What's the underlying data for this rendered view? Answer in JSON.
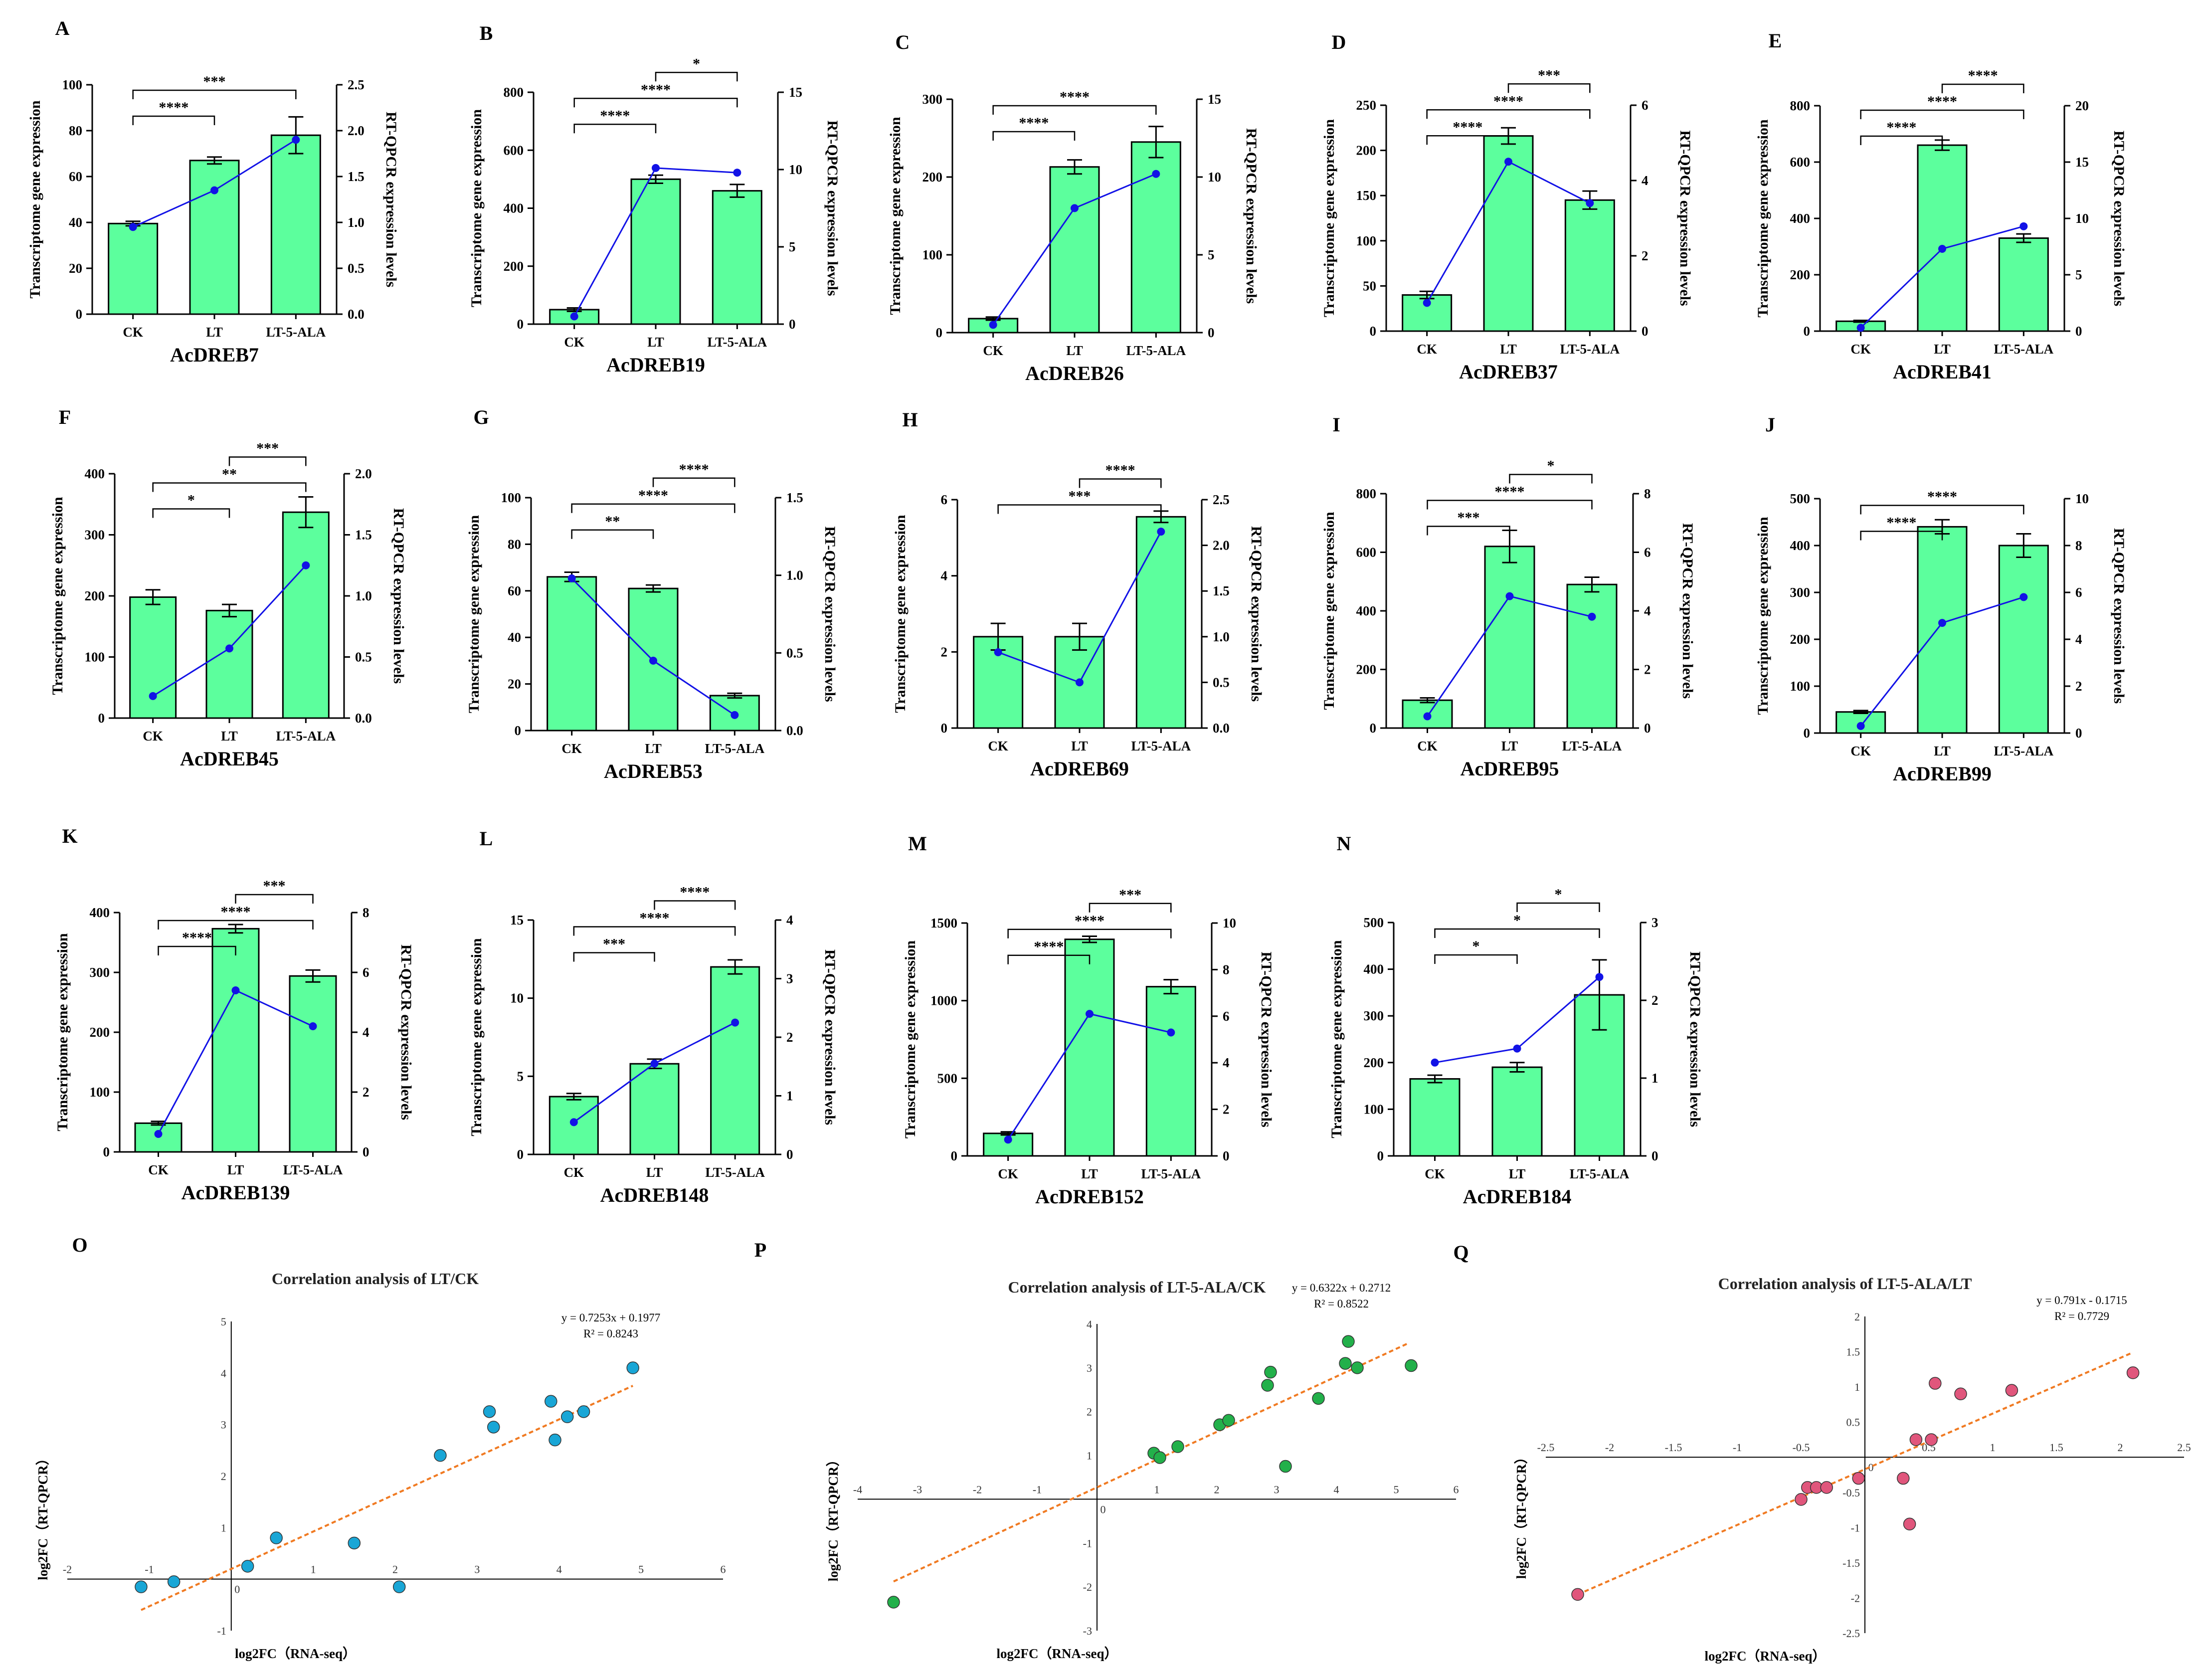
{
  "colors": {
    "bar": "#5cff9d",
    "line": "#1212e6",
    "fit": "#f07a22"
  },
  "chart_data": [
    {
      "type": "bar",
      "panel": "A",
      "gene": "AcDREB7",
      "categories": [
        "CK",
        "LT",
        "LT-5-ALA"
      ],
      "ylabel_left": "Transcriptome gene expression",
      "ylabel_right": "RT-QPCR expression levels",
      "left_ticks": [
        "0",
        "20",
        "40",
        "60",
        "80",
        "100"
      ],
      "left_max": 100,
      "right_ticks": [
        "0.0",
        "0.5",
        "1.0",
        "1.5",
        "2.0",
        "2.5"
      ],
      "right_max": 2.5,
      "values": [
        39.5,
        67,
        78
      ],
      "errors": [
        1,
        1.5,
        8
      ],
      "qpcr": [
        0.95,
        1.35,
        1.9
      ],
      "brackets": [
        {
          "from": 0,
          "to": 1,
          "label": "****"
        },
        {
          "from": 0,
          "to": 2,
          "label": "***"
        }
      ]
    },
    {
      "type": "bar",
      "panel": "B",
      "gene": "AcDREB19",
      "categories": [
        "CK",
        "LT",
        "LT-5-ALA"
      ],
      "ylabel_left": "Transcriptome gene expression",
      "ylabel_right": "RT-QPCR expression levels",
      "left_ticks": [
        "0",
        "200",
        "400",
        "600",
        "800"
      ],
      "left_max": 800,
      "right_ticks": [
        "0",
        "5",
        "10",
        "15"
      ],
      "right_max": 15,
      "values": [
        50,
        500,
        460
      ],
      "errors": [
        6,
        14,
        22
      ],
      "qpcr": [
        0.5,
        10.1,
        9.8
      ],
      "brackets": [
        {
          "from": 0,
          "to": 1,
          "label": "****"
        },
        {
          "from": 0,
          "to": 2,
          "label": "****"
        },
        {
          "from": 1,
          "to": 2,
          "label": "*"
        }
      ]
    },
    {
      "type": "bar",
      "panel": "C",
      "gene": "AcDREB26",
      "categories": [
        "CK",
        "LT",
        "LT-5-ALA"
      ],
      "ylabel_left": "Transcriptome gene expression",
      "ylabel_right": "RT-QPCR expression levels",
      "left_ticks": [
        "0",
        "100",
        "200",
        "300"
      ],
      "left_max": 300,
      "right_ticks": [
        "0",
        "5",
        "10",
        "15"
      ],
      "right_max": 15,
      "values": [
        18,
        213,
        245
      ],
      "errors": [
        2,
        9,
        20
      ],
      "qpcr": [
        0.5,
        8,
        10.2
      ],
      "brackets": [
        {
          "from": 0,
          "to": 1,
          "label": "****"
        },
        {
          "from": 0,
          "to": 2,
          "label": "****"
        }
      ]
    },
    {
      "type": "bar",
      "panel": "D",
      "gene": "AcDREB37",
      "categories": [
        "CK",
        "LT",
        "LT-5-ALA"
      ],
      "ylabel_left": "Transcriptome gene expression",
      "ylabel_right": "RT-QPCR expression levels",
      "left_ticks": [
        "0",
        "50",
        "100",
        "150",
        "200",
        "250"
      ],
      "left_max": 250,
      "right_ticks": [
        "0",
        "2",
        "4",
        "6"
      ],
      "right_max": 6,
      "values": [
        40,
        216,
        145
      ],
      "errors": [
        4,
        9,
        10
      ],
      "qpcr": [
        0.75,
        4.5,
        3.4
      ],
      "brackets": [
        {
          "from": 0,
          "to": 1,
          "label": "****"
        },
        {
          "from": 0,
          "to": 2,
          "label": "****"
        },
        {
          "from": 1,
          "to": 2,
          "label": "***"
        }
      ]
    },
    {
      "type": "bar",
      "panel": "E",
      "gene": "AcDREB41",
      "categories": [
        "CK",
        "LT",
        "LT-5-ALA"
      ],
      "ylabel_left": "Transcriptome gene expression",
      "ylabel_right": "RT-QPCR expression levels",
      "left_ticks": [
        "0",
        "200",
        "400",
        "600",
        "800"
      ],
      "left_max": 800,
      "right_ticks": [
        "0",
        "5",
        "10",
        "15",
        "20"
      ],
      "right_max": 20,
      "values": [
        35,
        660,
        330
      ],
      "errors": [
        3,
        18,
        15
      ],
      "qpcr": [
        0.3,
        7.3,
        9.3
      ],
      "brackets": [
        {
          "from": 0,
          "to": 1,
          "label": "****"
        },
        {
          "from": 0,
          "to": 2,
          "label": "****"
        },
        {
          "from": 1,
          "to": 2,
          "label": "****"
        }
      ]
    },
    {
      "type": "bar",
      "panel": "F",
      "gene": "AcDREB45",
      "categories": [
        "CK",
        "LT",
        "LT-5-ALA"
      ],
      "ylabel_left": "Transcriptome gene expression",
      "ylabel_right": "RT-QPCR expression levels",
      "left_ticks": [
        "0",
        "100",
        "200",
        "300",
        "400"
      ],
      "left_max": 400,
      "right_ticks": [
        "0.0",
        "0.5",
        "1.0",
        "1.5",
        "2.0"
      ],
      "right_max": 2,
      "values": [
        198,
        176,
        337
      ],
      "errors": [
        12,
        10,
        25
      ],
      "qpcr": [
        0.18,
        0.57,
        1.25
      ],
      "brackets": [
        {
          "from": 0,
          "to": 1,
          "label": "*"
        },
        {
          "from": 0,
          "to": 2,
          "label": "**"
        },
        {
          "from": 1,
          "to": 2,
          "label": "***"
        }
      ]
    },
    {
      "type": "bar",
      "panel": "G",
      "gene": "AcDREB53",
      "categories": [
        "CK",
        "LT",
        "LT-5-ALA"
      ],
      "ylabel_left": "Transcriptome gene expression",
      "ylabel_right": "RT-QPCR expression levels",
      "left_ticks": [
        "0",
        "20",
        "40",
        "60",
        "80",
        "100"
      ],
      "left_max": 100,
      "right_ticks": [
        "0.0",
        "0.5",
        "1.0",
        "1.5"
      ],
      "right_max": 1.5,
      "values": [
        66,
        61,
        15
      ],
      "errors": [
        2,
        1.5,
        1
      ],
      "qpcr": [
        0.98,
        0.45,
        0.1
      ],
      "brackets": [
        {
          "from": 0,
          "to": 1,
          "label": "**"
        },
        {
          "from": 0,
          "to": 2,
          "label": "****"
        },
        {
          "from": 1,
          "to": 2,
          "label": "****"
        }
      ]
    },
    {
      "type": "bar",
      "panel": "H",
      "gene": "AcDREB69",
      "categories": [
        "CK",
        "LT",
        "LT-5-ALA"
      ],
      "ylabel_left": "Transcriptome gene expression",
      "ylabel_right": "RT-QPCR expression levels",
      "left_ticks": [
        "0",
        "2",
        "4",
        "6"
      ],
      "left_max": 6,
      "right_ticks": [
        "0.0",
        "0.5",
        "1.0",
        "1.5",
        "2.0",
        "2.5"
      ],
      "right_max": 2.5,
      "values": [
        2.4,
        2.4,
        5.55
      ],
      "errors": [
        0.35,
        0.35,
        0.15
      ],
      "qpcr": [
        0.83,
        0.5,
        2.15
      ],
      "brackets": [
        {
          "from": 0,
          "to": 2,
          "label": "***"
        },
        {
          "from": 1,
          "to": 2,
          "label": "****"
        }
      ]
    },
    {
      "type": "bar",
      "panel": "I",
      "gene": "AcDREB95",
      "categories": [
        "CK",
        "LT",
        "LT-5-ALA"
      ],
      "ylabel_left": "Transcriptome gene expression",
      "ylabel_right": "RT-QPCR expression levels",
      "left_ticks": [
        "0",
        "200",
        "400",
        "600",
        "800"
      ],
      "left_max": 800,
      "right_ticks": [
        "0",
        "2",
        "4",
        "6",
        "8"
      ],
      "right_max": 8,
      "values": [
        95,
        620,
        490
      ],
      "errors": [
        8,
        55,
        25
      ],
      "qpcr": [
        0.4,
        4.5,
        3.8
      ],
      "brackets": [
        {
          "from": 0,
          "to": 1,
          "label": "***"
        },
        {
          "from": 0,
          "to": 2,
          "label": "****"
        },
        {
          "from": 1,
          "to": 2,
          "label": "*"
        }
      ]
    },
    {
      "type": "bar",
      "panel": "J",
      "gene": "AcDREB99",
      "categories": [
        "CK",
        "LT",
        "LT-5-ALA"
      ],
      "ylabel_left": "Transcriptome gene expression",
      "ylabel_right": "RT-QPCR expression levels",
      "left_ticks": [
        "0",
        "100",
        "200",
        "300",
        "400",
        "500"
      ],
      "left_max": 500,
      "right_ticks": [
        "0",
        "2",
        "4",
        "6",
        "8",
        "10"
      ],
      "right_max": 10,
      "values": [
        45,
        440,
        400
      ],
      "errors": [
        3,
        15,
        25
      ],
      "qpcr": [
        0.3,
        4.7,
        5.8
      ],
      "brackets": [
        {
          "from": 0,
          "to": 1,
          "label": "****"
        },
        {
          "from": 0,
          "to": 2,
          "label": "****"
        }
      ]
    },
    {
      "type": "bar",
      "panel": "K",
      "gene": "AcDREB139",
      "categories": [
        "CK",
        "LT",
        "LT-5-ALA"
      ],
      "ylabel_left": "Transcriptome gene expression",
      "ylabel_right": "RT-QPCR expression levels",
      "left_ticks": [
        "0",
        "100",
        "200",
        "300",
        "400"
      ],
      "left_max": 400,
      "right_ticks": [
        "0",
        "2",
        "4",
        "6",
        "8"
      ],
      "right_max": 8,
      "values": [
        48,
        373,
        294
      ],
      "errors": [
        3,
        7,
        10
      ],
      "qpcr": [
        0.6,
        5.4,
        4.2
      ],
      "brackets": [
        {
          "from": 0,
          "to": 1,
          "label": "****"
        },
        {
          "from": 0,
          "to": 2,
          "label": "****"
        },
        {
          "from": 1,
          "to": 2,
          "label": "***"
        }
      ]
    },
    {
      "type": "bar",
      "panel": "L",
      "gene": "AcDREB148",
      "categories": [
        "CK",
        "LT",
        "LT-5-ALA"
      ],
      "ylabel_left": "Transcriptome gene expression",
      "ylabel_right": "RT-QPCR expression levels",
      "left_ticks": [
        "0",
        "5",
        "10",
        "15"
      ],
      "left_max": 15,
      "right_ticks": [
        "0",
        "1",
        "2",
        "3",
        "4"
      ],
      "right_max": 4,
      "values": [
        3.7,
        5.8,
        12
      ],
      "errors": [
        0.2,
        0.3,
        0.45
      ],
      "qpcr": [
        0.55,
        1.55,
        2.25
      ],
      "brackets": [
        {
          "from": 0,
          "to": 1,
          "label": "***"
        },
        {
          "from": 0,
          "to": 2,
          "label": "****"
        },
        {
          "from": 1,
          "to": 2,
          "label": "****"
        }
      ]
    },
    {
      "type": "bar",
      "panel": "M",
      "gene": "AcDREB152",
      "categories": [
        "CK",
        "LT",
        "LT-5-ALA"
      ],
      "ylabel_left": "Transcriptome gene expression",
      "ylabel_right": "RT-QPCR expression levels",
      "left_ticks": [
        "0",
        "500",
        "1000",
        "1500"
      ],
      "left_max": 1500,
      "right_ticks": [
        "0",
        "2",
        "4",
        "6",
        "8",
        "10"
      ],
      "right_max": 10,
      "values": [
        145,
        1395,
        1090
      ],
      "errors": [
        10,
        20,
        45
      ],
      "qpcr": [
        0.7,
        6.1,
        5.3
      ],
      "brackets": [
        {
          "from": 0,
          "to": 1,
          "label": "****"
        },
        {
          "from": 0,
          "to": 2,
          "label": "****"
        },
        {
          "from": 1,
          "to": 2,
          "label": "***"
        }
      ]
    },
    {
      "type": "bar",
      "panel": "N",
      "gene": "AcDREB184",
      "categories": [
        "CK",
        "LT",
        "LT-5-ALA"
      ],
      "ylabel_left": "Transcriptome gene expression",
      "ylabel_right": "RT-QPCR expression levels",
      "left_ticks": [
        "0",
        "100",
        "200",
        "300",
        "400",
        "500"
      ],
      "left_max": 500,
      "right_ticks": [
        "0",
        "1",
        "2",
        "3"
      ],
      "right_max": 3,
      "values": [
        165,
        190,
        345
      ],
      "errors": [
        8,
        10,
        75
      ],
      "qpcr": [
        1.2,
        1.38,
        2.3
      ],
      "brackets": [
        {
          "from": 0,
          "to": 1,
          "label": "*"
        },
        {
          "from": 0,
          "to": 2,
          "label": "*"
        },
        {
          "from": 1,
          "to": 2,
          "label": "*"
        }
      ]
    },
    {
      "type": "scatter",
      "panel": "O",
      "title": "Correlation analysis of LT/CK",
      "xlabel": "log2FC（RNA-seq）",
      "ylabel": "log2FC（RT-QPCR）",
      "equation": "y = 0.7253x + 0.1977",
      "r2": "R² = 0.8243",
      "color": "#19a6d6",
      "xlim": [
        -2,
        6
      ],
      "ylim": [
        -1,
        5
      ],
      "x_ticks": [
        "-2",
        "-1",
        "0",
        "1",
        "2",
        "3",
        "4",
        "5",
        "6"
      ],
      "y_ticks": [
        "-1",
        "0",
        "1",
        "2",
        "3",
        "4",
        "5"
      ],
      "slope": 0.7253,
      "intercept": 0.1977,
      "fit_range": [
        -1.1,
        4.9
      ],
      "points": [
        [
          -1.1,
          -0.15
        ],
        [
          -0.7,
          -0.05
        ],
        [
          0.2,
          0.25
        ],
        [
          0.55,
          0.8
        ],
        [
          1.5,
          0.7
        ],
        [
          2.05,
          -0.15
        ],
        [
          2.55,
          2.4
        ],
        [
          3.15,
          3.25
        ],
        [
          3.2,
          2.95
        ],
        [
          3.9,
          3.45
        ],
        [
          3.95,
          2.7
        ],
        [
          4.1,
          3.15
        ],
        [
          4.3,
          3.25
        ],
        [
          4.9,
          4.1
        ]
      ]
    },
    {
      "type": "scatter",
      "panel": "P",
      "title": "Correlation analysis of LT-5-ALA/CK",
      "xlabel": "log2FC（RNA-seq）",
      "ylabel": "log2FC（RT-QPCR）",
      "equation": "y = 0.6322x + 0.2712",
      "r2": "R² = 0.8522",
      "color": "#22b04a",
      "xlim": [
        -4,
        6
      ],
      "ylim": [
        -3,
        4
      ],
      "x_ticks": [
        "-4",
        "-3",
        "-2",
        "-1",
        "0",
        "1",
        "2",
        "3",
        "4",
        "5",
        "6"
      ],
      "y_ticks": [
        "-3",
        "-2",
        "-1",
        "0",
        "1",
        "2",
        "3",
        "4"
      ],
      "slope": 0.6322,
      "intercept": 0.2712,
      "fit_range": [
        -3.4,
        5.2
      ],
      "points": [
        [
          -3.4,
          -2.35
        ],
        [
          0.95,
          1.05
        ],
        [
          1.05,
          0.95
        ],
        [
          1.35,
          1.2
        ],
        [
          2.05,
          1.7
        ],
        [
          2.2,
          1.8
        ],
        [
          2.85,
          2.6
        ],
        [
          2.9,
          2.9
        ],
        [
          3.15,
          0.75
        ],
        [
          3.7,
          2.3
        ],
        [
          4.15,
          3.1
        ],
        [
          4.2,
          3.6
        ],
        [
          4.35,
          3.0
        ],
        [
          5.25,
          3.05
        ]
      ]
    },
    {
      "type": "scatter",
      "panel": "Q",
      "title": "Correlation analysis of LT-5-ALA/LT",
      "xlabel": "log2FC（RNA-seq）",
      "ylabel": "log2FC（RT-QPCR）",
      "equation": "y = 0.791x - 0.1715",
      "r2": "R² = 0.7729",
      "color": "#e0567c",
      "xlim": [
        -2.5,
        2.5
      ],
      "ylim": [
        -2.5,
        2
      ],
      "x_ticks": [
        "-2.5",
        "-2",
        "-1.5",
        "-1",
        "-0.5",
        "0",
        "0.5",
        "1",
        "1.5",
        "2",
        "2.5"
      ],
      "y_ticks": [
        "-2.5",
        "-2",
        "-1.5",
        "-1",
        "-0.5",
        "0",
        "0.5",
        "1",
        "1.5",
        "2"
      ],
      "slope": 0.791,
      "intercept": -0.1715,
      "fit_range": [
        -2.25,
        2.1
      ],
      "points": [
        [
          -2.25,
          -1.95
        ],
        [
          -0.5,
          -0.6
        ],
        [
          -0.45,
          -0.43
        ],
        [
          -0.38,
          -0.43
        ],
        [
          -0.3,
          -0.43
        ],
        [
          0.3,
          -0.3
        ],
        [
          0.35,
          -0.95
        ],
        [
          0.4,
          0.25
        ],
        [
          0.52,
          0.25
        ],
        [
          0.55,
          1.05
        ],
        [
          0.75,
          0.9
        ],
        [
          1.15,
          0.95
        ],
        [
          2.1,
          1.2
        ],
        [
          -0.05,
          -0.3
        ]
      ]
    }
  ]
}
